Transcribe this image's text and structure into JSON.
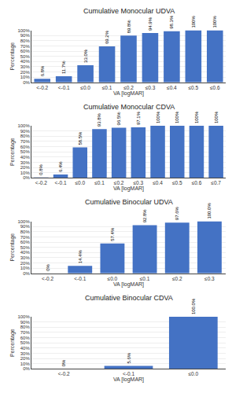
{
  "chart_data": [
    {
      "type": "bar",
      "title": "Cumulative Monocular UDVA",
      "xlabel": "VA [logMAR]",
      "ylabel": "Percentage",
      "categories": [
        "<-0.2",
        "<-0.1",
        "≤0.0",
        "≤0.1",
        "≤0.2",
        "≤0.3",
        "≤0.4",
        "≤0.5",
        "≤0.6"
      ],
      "values": [
        6.8,
        11.7,
        33.0,
        69.2,
        89.8,
        94.9,
        98.3,
        100.0,
        100.0
      ],
      "value_labels": [
        "6.8%",
        "11.7%",
        "33.0%",
        "69.2%",
        "89.8%",
        "94.9%",
        "98.3%",
        "100%",
        "100%"
      ],
      "data_labels": true,
      "color": "#4472C4",
      "ylim": [
        0,
        100
      ],
      "yticks": [
        {
          "value": 0,
          "label": "0%"
        },
        {
          "value": 10,
          "label": "10%"
        },
        {
          "value": 20,
          "label": "20%"
        },
        {
          "value": 30,
          "label": "30%"
        },
        {
          "value": 40,
          "label": "40%"
        },
        {
          "value": 50,
          "label": "50%"
        },
        {
          "value": 60,
          "label": "60%"
        },
        {
          "value": 70,
          "label": "70%"
        },
        {
          "value": 80,
          "label": "80%"
        },
        {
          "value": 90,
          "label": "90%"
        },
        {
          "value": 100,
          "label": "100%"
        }
      ],
      "grid": true
    },
    {
      "type": "bar",
      "title": "Cumulative Monocular CDVA",
      "xlabel": "VA [logMAR]",
      "ylabel": "Percentage",
      "categories": [
        "<-0.2",
        "<-0.1",
        "≤0.0",
        "≤0.1",
        "≤0.2",
        "≤0.3",
        "≤0.4",
        "≤0.5",
        "≤0.6",
        "≤0.7"
      ],
      "values": [
        0.8,
        6.4,
        58.5,
        93.8,
        96.5,
        97.1,
        100.0,
        100.0,
        100.0,
        100.0
      ],
      "value_labels": [
        "0.8%",
        "6.4%",
        "58.5%",
        "93.8%",
        "96.5%",
        "97.1%",
        "100%",
        "100%",
        "100%",
        "100%"
      ],
      "data_labels": true,
      "color": "#4472C4",
      "ylim": [
        0,
        100
      ],
      "yticks": [
        {
          "value": 0,
          "label": "0%"
        },
        {
          "value": 10,
          "label": "10%"
        },
        {
          "value": 20,
          "label": "20%"
        },
        {
          "value": 30,
          "label": "30%"
        },
        {
          "value": 40,
          "label": "40%"
        },
        {
          "value": 50,
          "label": "50%"
        },
        {
          "value": 60,
          "label": "60%"
        },
        {
          "value": 70,
          "label": "70%"
        },
        {
          "value": 80,
          "label": "80%"
        },
        {
          "value": 90,
          "label": "90%"
        },
        {
          "value": 100,
          "label": "100%"
        }
      ],
      "grid": true
    },
    {
      "type": "bar",
      "title": "Cumulative Binocular UDVA",
      "xlabel": "VA [logMAR]",
      "ylabel": "Percentage",
      "categories": [
        "<-0.2",
        "<-0.1",
        "≤0.0",
        "≤0.1",
        "≤0.2",
        "≤0.3"
      ],
      "values": [
        0.0,
        14.4,
        57.4,
        92.8,
        97.6,
        100.0
      ],
      "value_labels": [
        "0%",
        "14.4%",
        "57.4%",
        "92.8%",
        "97.6%",
        "100.0%"
      ],
      "data_labels": true,
      "color": "#4472C4",
      "ylim": [
        0,
        100
      ],
      "yticks": [
        {
          "value": 0,
          "label": "0%"
        },
        {
          "value": 10,
          "label": "10%"
        },
        {
          "value": 20,
          "label": "20%"
        },
        {
          "value": 30,
          "label": "30%"
        },
        {
          "value": 40,
          "label": "40%"
        },
        {
          "value": 50,
          "label": "50%"
        },
        {
          "value": 60,
          "label": "60%"
        },
        {
          "value": 70,
          "label": "70%"
        },
        {
          "value": 80,
          "label": "80%"
        },
        {
          "value": 90,
          "label": "90%"
        },
        {
          "value": 100,
          "label": "100%"
        }
      ],
      "grid": true
    },
    {
      "type": "bar",
      "title": "Cumulative Binocular CDVA",
      "xlabel": "VA [logMAR]",
      "ylabel": "Percentage",
      "categories": [
        "<-0.2",
        "<-0.1",
        "≤0.0"
      ],
      "values": [
        0.0,
        5.6,
        100.0
      ],
      "value_labels": [
        "0%",
        "5.6%",
        "100.0%"
      ],
      "data_labels": true,
      "color": "#4472C4",
      "ylim": [
        0,
        100
      ],
      "yticks": [
        {
          "value": 0,
          "label": "0%"
        },
        {
          "value": 10,
          "label": "10%"
        },
        {
          "value": 20,
          "label": "20%"
        },
        {
          "value": 30,
          "label": "30%"
        },
        {
          "value": 40,
          "label": "40%"
        },
        {
          "value": 50,
          "label": "50%"
        },
        {
          "value": 60,
          "label": "60%"
        },
        {
          "value": 70,
          "label": "70%"
        },
        {
          "value": 80,
          "label": "80%"
        },
        {
          "value": 90,
          "label": "90%"
        },
        {
          "value": 100,
          "label": "100%"
        }
      ],
      "grid": true
    }
  ]
}
